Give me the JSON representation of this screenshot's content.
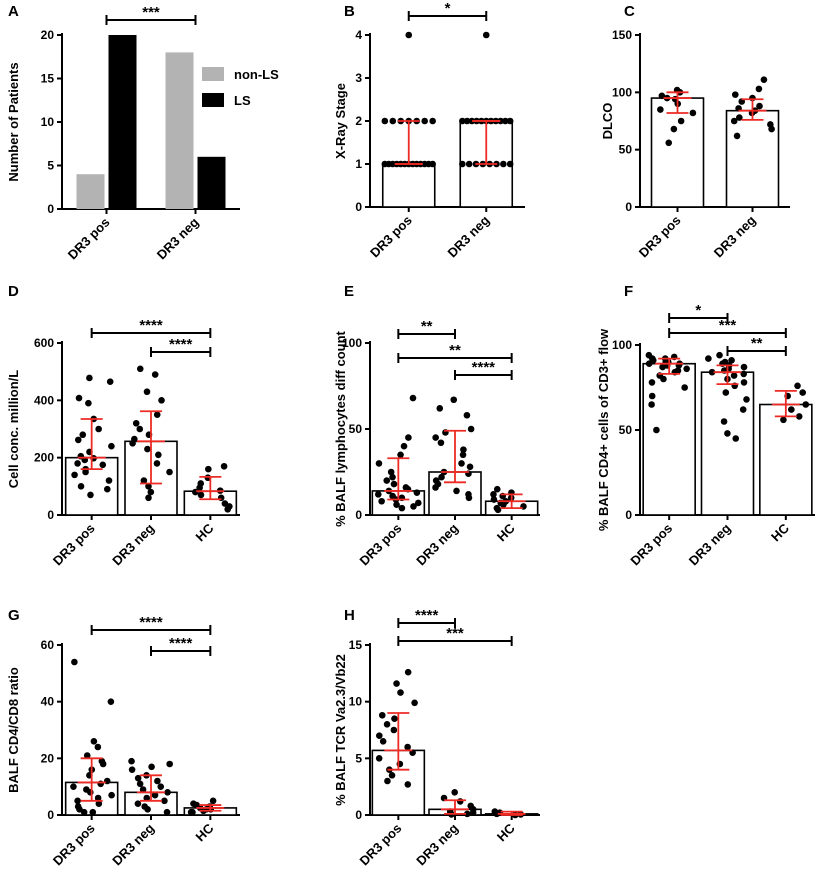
{
  "colors": {
    "gray": "#b3b3b3",
    "black": "#000000",
    "red": "#ee2a24"
  },
  "chart_data": [
    {
      "id": "A",
      "type": "bar",
      "panel_label": "A",
      "ylabel": "Number of Patients",
      "ylim": [
        0,
        20
      ],
      "yticks": [
        0,
        5,
        10,
        15,
        20
      ],
      "categories": [
        "DR3 pos",
        "DR3 neg"
      ],
      "series": [
        {
          "name": "non-LS",
          "color": "#b3b3b3",
          "values": [
            4,
            18
          ]
        },
        {
          "name": "LS",
          "color": "#000000",
          "values": [
            20,
            6
          ]
        }
      ],
      "legend": [
        "non-LS",
        "LS"
      ],
      "legend_position": "top-right",
      "significance": [
        {
          "from": 0,
          "to": 1,
          "label": "***"
        }
      ]
    },
    {
      "id": "B",
      "type": "bar-scatter",
      "panel_label": "B",
      "ylabel": "X-Ray Stage",
      "ylim": [
        0,
        4
      ],
      "yticks": [
        0,
        1,
        2,
        3,
        4
      ],
      "categories": [
        "DR3 pos",
        "DR3 neg"
      ],
      "bars": [
        1,
        2
      ],
      "errors": [
        [
          1,
          2
        ],
        [
          1,
          2
        ]
      ],
      "points": [
        [
          4,
          2,
          2,
          2,
          2,
          2,
          2,
          2,
          1,
          1,
          1,
          1,
          1,
          1,
          1,
          1,
          1,
          1,
          1,
          1,
          1
        ],
        [
          4,
          2,
          2,
          2,
          2,
          2,
          2,
          2,
          2,
          2,
          2,
          2,
          1,
          1,
          1,
          1,
          1,
          1,
          1,
          1
        ]
      ],
      "significance": [
        {
          "from": 0,
          "to": 1,
          "label": "*"
        }
      ]
    },
    {
      "id": "C",
      "type": "bar-scatter",
      "panel_label": "C",
      "ylabel": "DLCO",
      "ylim": [
        0,
        150
      ],
      "yticks": [
        0,
        50,
        100,
        150
      ],
      "categories": [
        "DR3 pos",
        "DR3 neg"
      ],
      "bars": [
        95,
        84
      ],
      "errors": [
        [
          82,
          100
        ],
        [
          76,
          94
        ]
      ],
      "points": [
        [
          102,
          100,
          97,
          95,
          94,
          90,
          85,
          82,
          75,
          68,
          56
        ],
        [
          111,
          103,
          98,
          95,
          92,
          88,
          86,
          84,
          82,
          78,
          75,
          72,
          68,
          62
        ]
      ],
      "significance": []
    },
    {
      "id": "D",
      "type": "bar-scatter",
      "panel_label": "D",
      "ylabel": "Cell conc. million/L",
      "ylim": [
        0,
        600
      ],
      "yticks": [
        0,
        200,
        400,
        600
      ],
      "categories": [
        "DR3 pos",
        "DR3 neg",
        "HC"
      ],
      "bars": [
        200,
        257,
        83
      ],
      "errors": [
        [
          160,
          335
        ],
        [
          110,
          362
        ],
        [
          55,
          133
        ]
      ],
      "points": [
        [
          478,
          465,
          408,
          390,
          335,
          300,
          280,
          262,
          240,
          220,
          205,
          198,
          192,
          180,
          175,
          160,
          150,
          140,
          120,
          100,
          90,
          70
        ],
        [
          510,
          490,
          430,
          400,
          350,
          320,
          300,
          280,
          265,
          250,
          230,
          210,
          180,
          150,
          120,
          100,
          80,
          60
        ],
        [
          170,
          160,
          130,
          110,
          95,
          85,
          80,
          70,
          60,
          40,
          30,
          20
        ]
      ],
      "significance": [
        {
          "from": 0,
          "to": 2,
          "label": "****"
        },
        {
          "from": 1,
          "to": 2,
          "label": "****"
        }
      ]
    },
    {
      "id": "E",
      "type": "bar-scatter",
      "panel_label": "E",
      "ylabel": "% BALF lymphocytes diff count",
      "ylim": [
        0,
        100
      ],
      "yticks": [
        0,
        50,
        100
      ],
      "categories": [
        "DR3 pos",
        "DR3 neg",
        "HC"
      ],
      "bars": [
        14,
        25,
        8
      ],
      "errors": [
        [
          9,
          33
        ],
        [
          19,
          49
        ],
        [
          4,
          12
        ]
      ],
      "points": [
        [
          68,
          45,
          40,
          35,
          30,
          25,
          22,
          20,
          18,
          16,
          15,
          14,
          13,
          12,
          11,
          10,
          9,
          8,
          7,
          6,
          5,
          4
        ],
        [
          67,
          62,
          58,
          50,
          48,
          45,
          42,
          38,
          35,
          30,
          28,
          25,
          24,
          22,
          20,
          18,
          16,
          14,
          12,
          10
        ],
        [
          15,
          13,
          12,
          11,
          10,
          9,
          8,
          7,
          6,
          5,
          4,
          3
        ]
      ],
      "significance": [
        {
          "from": 0,
          "to": 1,
          "label": "**"
        },
        {
          "from": 0,
          "to": 2,
          "label": "**"
        },
        {
          "from": 1,
          "to": 2,
          "label": "****"
        }
      ]
    },
    {
      "id": "F",
      "type": "bar-scatter",
      "panel_label": "F",
      "ylabel": "% BALF CD4+ cells of CD3+ flow",
      "ylim": [
        0,
        100
      ],
      "yticks": [
        0,
        50,
        100
      ],
      "categories": [
        "DR3 pos",
        "DR3 neg",
        "HC"
      ],
      "bars": [
        89,
        84,
        65
      ],
      "errors": [
        [
          83,
          92
        ],
        [
          77,
          88
        ],
        [
          58,
          73
        ]
      ],
      "points": [
        [
          94,
          93,
          92,
          92,
          91,
          90,
          90,
          89,
          89,
          88,
          88,
          87,
          86,
          85,
          84,
          82,
          80,
          78,
          75,
          70,
          65,
          50
        ],
        [
          94,
          92,
          91,
          90,
          89,
          88,
          87,
          86,
          85,
          84,
          83,
          82,
          80,
          78,
          76,
          72,
          68,
          62,
          55,
          48,
          45
        ],
        [
          76,
          72,
          70,
          65,
          62,
          58,
          56
        ]
      ],
      "significance": [
        {
          "from": 0,
          "to": 1,
          "label": "*"
        },
        {
          "from": 0,
          "to": 2,
          "label": "***"
        },
        {
          "from": 1,
          "to": 2,
          "label": "**"
        }
      ]
    },
    {
      "id": "G",
      "type": "bar-scatter",
      "panel_label": "G",
      "ylabel": "BALF CD4/CD8 ratio",
      "ylim": [
        0,
        60
      ],
      "yticks": [
        0,
        20,
        40,
        60
      ],
      "categories": [
        "DR3 pos",
        "DR3 neg",
        "HC"
      ],
      "bars": [
        11.5,
        8,
        2.5
      ],
      "errors": [
        [
          5,
          20
        ],
        [
          5,
          14
        ],
        [
          1.5,
          3.5
        ]
      ],
      "points": [
        [
          54,
          40,
          26,
          24,
          21,
          19,
          18,
          16,
          14,
          12,
          11,
          10,
          9,
          8,
          7,
          6,
          5,
          4,
          3,
          2,
          1,
          1
        ],
        [
          19,
          18,
          17,
          16,
          14,
          13,
          12,
          11,
          10,
          9,
          8,
          7,
          6,
          5,
          4,
          3,
          2,
          1
        ],
        [
          5,
          4,
          3.5,
          3,
          2.5,
          2,
          2,
          1.5,
          1,
          1
        ]
      ],
      "significance": [
        {
          "from": 0,
          "to": 2,
          "label": "****"
        },
        {
          "from": 1,
          "to": 2,
          "label": "****"
        }
      ]
    },
    {
      "id": "H",
      "type": "bar-scatter",
      "panel_label": "H",
      "ylabel": "% BALF TCR Va2.3/Vb22",
      "ylim": [
        0,
        15
      ],
      "yticks": [
        0,
        5,
        10,
        15
      ],
      "categories": [
        "DR3 pos",
        "DR3 neg",
        "HC"
      ],
      "bars": [
        5.7,
        0.5,
        0.1
      ],
      "errors": [
        [
          4,
          9
        ],
        [
          0.1,
          1.3
        ],
        [
          0,
          0.3
        ]
      ],
      "points": [
        [
          12.6,
          11.6,
          10.8,
          9.9,
          8.8,
          8.5,
          8.0,
          7.5,
          7.0,
          6.5,
          6.0,
          5.5,
          5.0,
          4.5,
          4.0,
          3.5,
          3.0,
          2.7
        ],
        [
          2.0,
          1.5,
          1.2,
          0.8,
          0.5,
          0.3,
          0.2,
          0.1,
          0.05
        ],
        [
          0.3,
          0.2,
          0.1,
          0.05,
          0
        ]
      ],
      "significance": [
        {
          "from": 0,
          "to": 1,
          "label": "****"
        },
        {
          "from": 0,
          "to": 2,
          "label": "***"
        }
      ]
    }
  ]
}
